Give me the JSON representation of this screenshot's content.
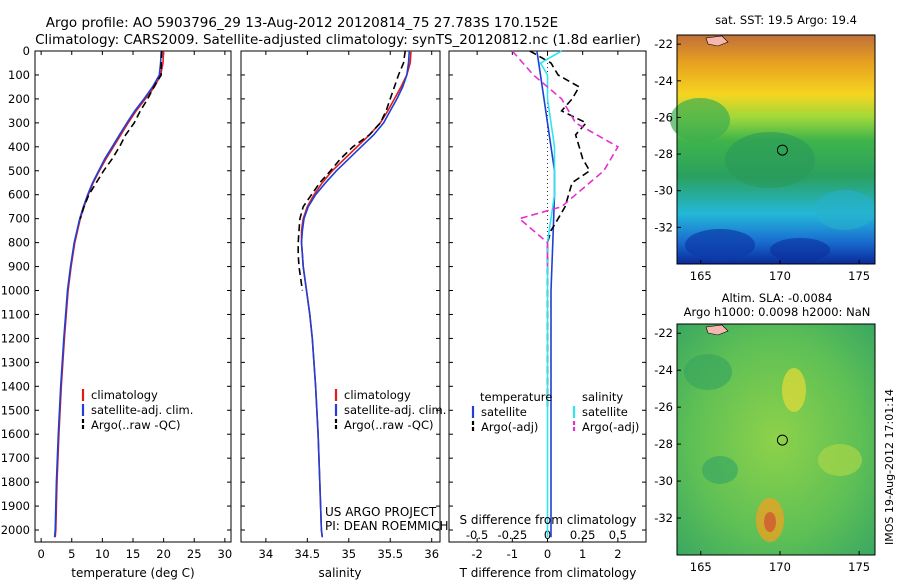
{
  "title": {
    "line1": "Argo profile: AO 5903796_29 13-Aug-2012 20120814_75 27.783S 170.152E",
    "line2": "Climatology: CARS2009. Satellite-adjusted climatology: synTS_20120812.nc (1.8d earlier)"
  },
  "side_stamp": "IMOS 19-Aug-2012 17:01:14",
  "depth_ticks": [
    "0",
    "100",
    "200",
    "300",
    "400",
    "500",
    "600",
    "700",
    "800",
    "900",
    "1000",
    "1100",
    "1200",
    "1300",
    "1400",
    "1500",
    "1600",
    "1700",
    "1800",
    "1900",
    "2000"
  ],
  "colors": {
    "climatology": "#e41a1c",
    "satellite": "#1f3fd6",
    "argo": "#000000",
    "sal_satellite": "#2ee6f0",
    "sal_argo": "#e62fd0"
  },
  "chart_data": [
    {
      "type": "line",
      "xlabel": "temperature (deg C)",
      "xlim": [
        -1,
        31
      ],
      "ylim": [
        2050,
        0
      ],
      "xticks": [
        "0",
        "5",
        "10",
        "15",
        "20",
        "25",
        "30"
      ],
      "legend": [
        "climatology",
        "satellite-adj. clim.",
        "Argo(..raw -QC)"
      ],
      "series": [
        {
          "name": "climatology",
          "depth": [
            0,
            50,
            100,
            150,
            200,
            250,
            300,
            350,
            400,
            450,
            500,
            550,
            600,
            650,
            700,
            800,
            900,
            1000,
            1200,
            1400,
            1600,
            1800,
            2000,
            2030
          ],
          "values": [
            20.0,
            19.9,
            19.5,
            18.5,
            17.0,
            15.5,
            14.2,
            13.0,
            11.8,
            10.6,
            9.5,
            8.5,
            7.7,
            7.0,
            6.4,
            5.5,
            4.9,
            4.4,
            3.8,
            3.3,
            2.9,
            2.6,
            2.4,
            2.3
          ]
        },
        {
          "name": "satellite-adj. clim.",
          "depth": [
            0,
            50,
            100,
            150,
            200,
            250,
            300,
            350,
            400,
            450,
            500,
            550,
            600,
            650,
            700,
            800,
            900,
            1000,
            1200,
            1400,
            1600,
            1800,
            2000,
            2030
          ],
          "values": [
            19.6,
            19.5,
            19.3,
            18.2,
            16.8,
            15.3,
            14.0,
            12.8,
            11.6,
            10.4,
            9.4,
            8.4,
            7.6,
            6.9,
            6.3,
            5.4,
            4.8,
            4.3,
            3.7,
            3.2,
            2.8,
            2.5,
            2.3,
            2.2
          ]
        },
        {
          "name": "Argo(..raw -QC)",
          "depth": [
            0,
            50,
            100,
            150,
            200,
            250,
            300,
            350,
            400,
            450,
            500,
            550,
            600,
            650,
            700
          ],
          "values": [
            19.7,
            19.6,
            19.6,
            18.4,
            17.4,
            16.2,
            15.2,
            13.8,
            12.8,
            11.6,
            10.2,
            9.0,
            7.8,
            7.0,
            6.4
          ]
        }
      ]
    },
    {
      "type": "line",
      "xlabel": "salinity",
      "xlim": [
        33.7,
        36.1
      ],
      "ylim": [
        2050,
        0
      ],
      "xticks": [
        "34",
        "34.5",
        "35",
        "35.5",
        "36"
      ],
      "legend": [
        "climatology",
        "satellite-adj. clim.",
        "Argo(..raw -QC)"
      ],
      "series": [
        {
          "name": "climatology",
          "depth": [
            0,
            50,
            100,
            150,
            200,
            250,
            300,
            350,
            400,
            450,
            500,
            550,
            600,
            650,
            700,
            750,
            800,
            850,
            900,
            1000,
            1100,
            1200,
            1400,
            1600,
            1800,
            2000,
            2030
          ],
          "values": [
            35.75,
            35.74,
            35.7,
            35.63,
            35.55,
            35.47,
            35.38,
            35.25,
            35.1,
            34.95,
            34.8,
            34.68,
            34.58,
            34.5,
            34.45,
            34.43,
            34.43,
            34.44,
            34.45,
            34.49,
            34.53,
            34.56,
            34.6,
            34.63,
            34.65,
            34.67,
            34.68
          ]
        },
        {
          "name": "satellite-adj. clim.",
          "depth": [
            0,
            50,
            100,
            150,
            200,
            250,
            300,
            350,
            400,
            450,
            500,
            550,
            600,
            650,
            700,
            750,
            800,
            850,
            900,
            1000,
            1100,
            1200,
            1400,
            1600,
            1800,
            2000,
            2030
          ],
          "values": [
            35.73,
            35.72,
            35.7,
            35.65,
            35.58,
            35.5,
            35.42,
            35.3,
            35.15,
            35.0,
            34.85,
            34.72,
            34.6,
            34.51,
            34.46,
            34.44,
            34.43,
            34.44,
            34.45,
            34.49,
            34.53,
            34.56,
            34.6,
            34.63,
            34.65,
            34.67,
            34.68
          ]
        },
        {
          "name": "Argo(..raw -QC)",
          "depth": [
            0,
            50,
            100,
            150,
            200,
            250,
            300,
            350,
            400,
            450,
            500,
            550,
            600,
            650,
            700,
            750,
            800,
            850,
            900,
            950,
            1000
          ],
          "values": [
            35.68,
            35.66,
            35.6,
            35.55,
            35.5,
            35.45,
            35.38,
            35.25,
            35.05,
            34.9,
            34.78,
            34.65,
            34.55,
            34.45,
            34.41,
            34.4,
            34.39,
            34.39,
            34.4,
            34.42,
            34.44
          ]
        }
      ]
    },
    {
      "type": "line",
      "xlabel": "T difference from climatology",
      "xlabel_top": "S difference from climatology",
      "xlim": [
        -2.8,
        2.8
      ],
      "ylim": [
        2050,
        0
      ],
      "xticks": [
        "-2",
        "-1",
        "0",
        "1",
        "2"
      ],
      "xticks_top": [
        "-0.5",
        "-0.25",
        "0",
        "0.25",
        "0.5"
      ],
      "legend_left": {
        "heading": "temperature",
        "items": [
          "satellite",
          "Argo(-adj)"
        ]
      },
      "legend_right": {
        "heading": "salinity",
        "items": [
          "satellite",
          "Argo(-adj)"
        ]
      },
      "series": [
        {
          "name": "satellite",
          "group": "temperature",
          "depth": [
            0,
            100,
            200,
            300,
            400,
            500,
            600,
            800,
            1000,
            1500,
            2030
          ],
          "values": [
            -0.3,
            -0.2,
            -0.1,
            0,
            0.1,
            0.2,
            0.2,
            0.15,
            0.1,
            0.1,
            0.1
          ]
        },
        {
          "name": "Argo(-adj)",
          "group": "temperature",
          "depth": [
            0,
            50,
            100,
            150,
            200,
            250,
            300,
            350,
            400,
            450,
            500,
            550,
            600,
            650,
            700,
            750,
            800,
            1000,
            1400,
            1500
          ],
          "values": [
            -0.5,
            0.1,
            0.3,
            0.9,
            0.7,
            0.4,
            1.1,
            0.8,
            0.9,
            1.0,
            1.2,
            0.7,
            0.6,
            0.5,
            0.3,
            0.1,
            0.0,
            0.0,
            0.0,
            0.0
          ]
        },
        {
          "name": "satellite",
          "group": "salinity",
          "depth": [
            0,
            50,
            100,
            200,
            400,
            600,
            800,
            1000,
            1500,
            2030
          ],
          "values": [
            0.1,
            -0.05,
            0.0,
            0.0,
            0.05,
            0.05,
            0.0,
            0.0,
            0.0,
            0.0
          ]
        },
        {
          "name": "Argo(-adj)",
          "group": "salinity",
          "depth": [
            0,
            100,
            200,
            300,
            400,
            500,
            600,
            650,
            700,
            750,
            800,
            900
          ],
          "values": [
            -0.25,
            -0.1,
            0.1,
            0.2,
            0.5,
            0.4,
            0.2,
            0.1,
            -0.2,
            -0.1,
            0.0,
            0.0
          ]
        }
      ]
    }
  ],
  "maps": [
    {
      "title": "sat. SST: 19.5 Argo: 19.4",
      "xticks": [
        "165",
        "170",
        "175"
      ],
      "yticks": [
        "-22",
        "-24",
        "-26",
        "-28",
        "-30",
        "-32"
      ],
      "marker": {
        "lon": 170.152,
        "lat": -27.783
      }
    },
    {
      "title_line1": "Altim. SLA: -0.0084",
      "title_line2": "Argo h1000: 0.0098 h2000: NaN",
      "xticks": [
        "165",
        "170",
        "175"
      ],
      "yticks": [
        "-22",
        "-24",
        "-26",
        "-28",
        "-30",
        "-32"
      ],
      "marker": {
        "lon": 170.152,
        "lat": -27.783
      }
    }
  ],
  "panel_notes": {
    "project_line1": "US ARGO PROJECT",
    "project_line2": "PI: DEAN ROEMMICH"
  }
}
